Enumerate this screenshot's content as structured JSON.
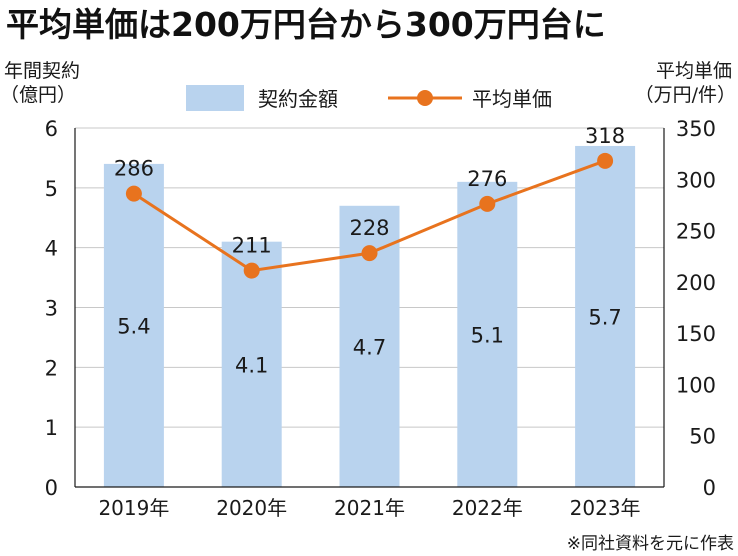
{
  "title": "平均単価は200万円台から300万円台に",
  "source_note": "※同社資料を元に作表",
  "chart_data": {
    "type": "bar",
    "categories": [
      "2019年",
      "2020年",
      "2021年",
      "2022年",
      "2023年"
    ],
    "series": [
      {
        "name": "契約金額",
        "kind": "bar",
        "axis": "left",
        "values": [
          5.4,
          4.1,
          4.7,
          5.1,
          5.7
        ],
        "labels": [
          "5.4",
          "4.1",
          "4.7",
          "5.1",
          "5.7"
        ]
      },
      {
        "name": "平均単価",
        "kind": "line",
        "axis": "right",
        "values": [
          286,
          211,
          228,
          276,
          318
        ],
        "labels": [
          "286",
          "211",
          "228",
          "276",
          "318"
        ]
      }
    ],
    "y_left": {
      "label_line1": "年間契約",
      "label_line2": "（億円）",
      "range": [
        0,
        6
      ],
      "ticks": [
        "0",
        "1",
        "2",
        "3",
        "4",
        "5",
        "6"
      ]
    },
    "y_right": {
      "label_line1": "平均単価",
      "label_line2": "（万円/件）",
      "range": [
        0,
        350
      ],
      "ticks": [
        "0",
        "50",
        "100",
        "150",
        "200",
        "250",
        "300",
        "350"
      ]
    },
    "legend_position": "top-center",
    "grid": true,
    "colors": {
      "bar": "#b9d3ee",
      "line": "#e8731e",
      "grid": "#c8c8c8"
    }
  }
}
